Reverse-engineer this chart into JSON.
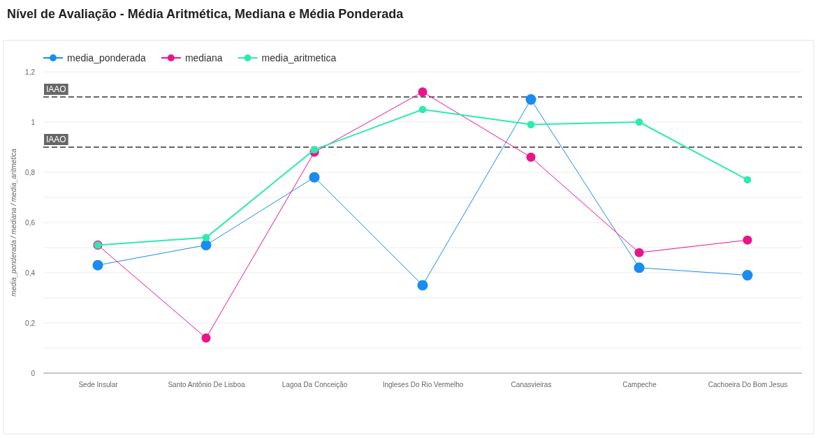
{
  "chart_data": {
    "type": "line",
    "title": "Nível de Avaliação - Média Aritmética, Mediana e Média Ponderada",
    "ylabel": "media_ponderada / mediana / media_aritmetica",
    "categories": [
      "Sede Insular",
      "Santo Antônio De Lisboa",
      "Lagoa Da Conceição",
      "Ingleses Do Rio Vermelho",
      "Canasvieiras",
      "Campeche",
      "Cachoeira Do Bom Jesus"
    ],
    "series": [
      {
        "name": "media_ponderada",
        "color": "#1a8cf0",
        "values": [
          0.43,
          0.51,
          0.78,
          0.35,
          1.09,
          0.42,
          0.39
        ]
      },
      {
        "name": "mediana",
        "color": "#e8158c",
        "values": [
          0.51,
          0.14,
          0.88,
          1.12,
          0.86,
          0.48,
          0.53
        ]
      },
      {
        "name": "media_aritmetica",
        "color": "#2eeab0",
        "values": [
          0.51,
          0.54,
          0.89,
          1.05,
          0.99,
          1.0,
          0.77
        ]
      }
    ],
    "ylim": [
      0,
      1.2
    ],
    "yticks": [
      0,
      {
        "value": 0.1,
        "label": null
      },
      {
        "value": 0.2,
        "label": "0,2"
      },
      {
        "value": 0.3,
        "label": null
      },
      {
        "value": 0.4,
        "label": "0,4"
      },
      {
        "value": 0.5,
        "label": null
      },
      {
        "value": 0.6,
        "label": "0,6"
      },
      {
        "value": 0.7,
        "label": null
      },
      {
        "value": 0.8,
        "label": "0,8"
      },
      1,
      {
        "value": 1.2,
        "label": "1,2"
      }
    ],
    "ref_lines": [
      {
        "axis": "y",
        "value": 1.1,
        "label": "IAAO",
        "color": "#666666",
        "line_style": "dashed"
      },
      {
        "axis": "y",
        "value": 0.9,
        "label": "IAAO",
        "color": "#666666",
        "line_style": "dashed"
      }
    ],
    "grid": "y",
    "legend": "top left",
    "marker": "circle",
    "line_style": "solid"
  }
}
